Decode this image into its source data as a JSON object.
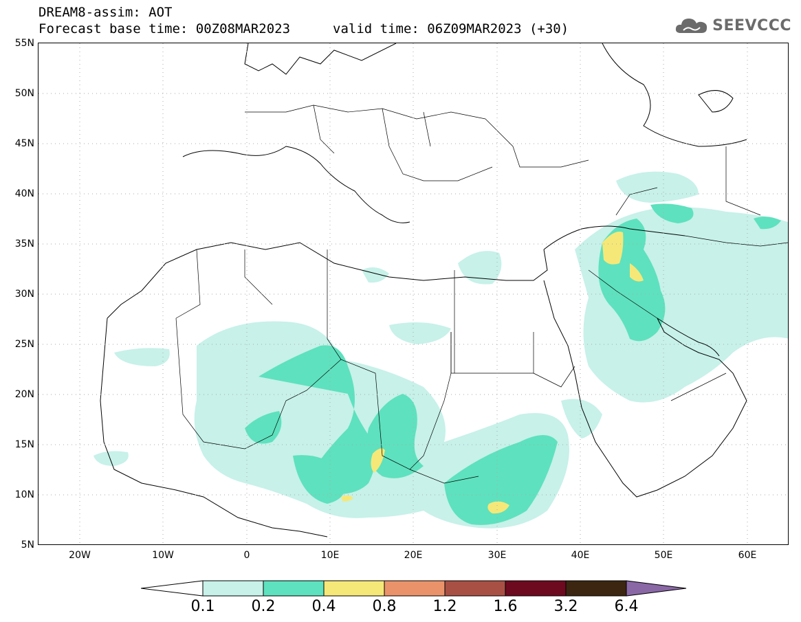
{
  "header": {
    "line1": "DREAM8-assim: AOT",
    "line2": "Forecast base time: 00Z08MAR2023",
    "line3": "valid time: 06Z09MAR2023 (+30)"
  },
  "logo": {
    "text": "SEEVCCC",
    "icon": "cloud-icon",
    "color": "#6b6b6b"
  },
  "map": {
    "lat_labels": [
      "55N",
      "50N",
      "45N",
      "40N",
      "35N",
      "30N",
      "25N",
      "20N",
      "15N",
      "10N",
      "5N"
    ],
    "lon_labels": [
      "20W",
      "10W",
      "0",
      "10E",
      "20E",
      "30E",
      "40E",
      "50E",
      "60E"
    ],
    "lon_range": [
      "25W",
      "65E"
    ],
    "lat_range": [
      "5N",
      "55N"
    ],
    "grid": "dotted"
  },
  "colorbar": {
    "labels": [
      "0.1",
      "0.2",
      "0.4",
      "0.8",
      "1.2",
      "1.6",
      "3.2",
      "6.4"
    ],
    "colors": [
      "#ffffff",
      "#c7f1e9",
      "#5ee1be",
      "#f6e878",
      "#ea936a",
      "#a95044",
      "#6e0a1f",
      "#3c2611",
      "#8a68a5"
    ]
  }
}
